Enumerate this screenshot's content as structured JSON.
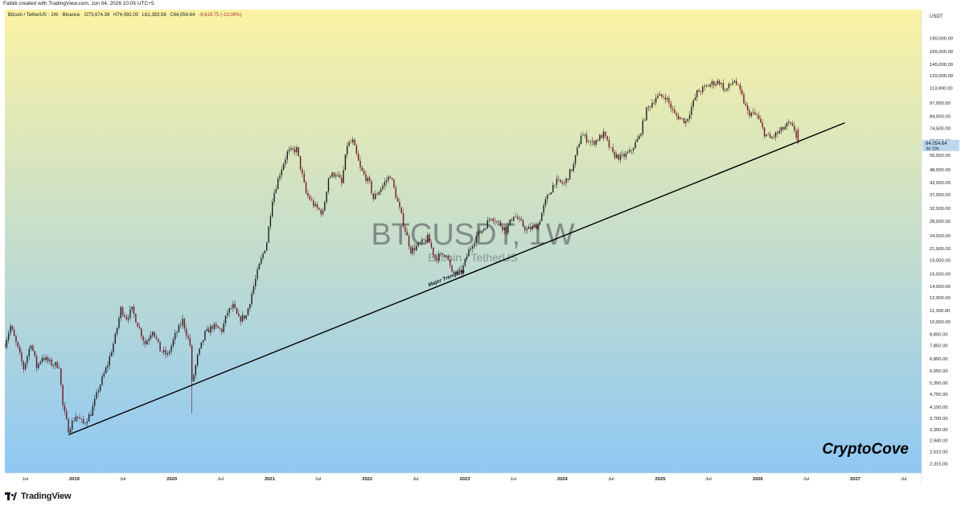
{
  "header": {
    "attribution": "Fatbik created with TradingView.com, Jun 04, 2026 10:05 UTC+5"
  },
  "legend": {
    "symbol": "Bitcoin / TetherUS · 1W · Binance",
    "open": "O73,674.39",
    "high": "H74,092.00",
    "low": "L61,383.56",
    "close": "C64,054.64",
    "change": "-9,619.75 (-13.06%)"
  },
  "watermark": {
    "ticker": "BTCUSDT, 1W",
    "name": "Bitcoin / TetherUS"
  },
  "branding": {
    "author": "CryptoCove",
    "platform": "TradingView"
  },
  "colors": {
    "bg_top": "#fbf3a4",
    "bg_bottom": "#8fc8f4",
    "candle_up": "#1d1d1d",
    "candle_down": "#6e1523",
    "trendline": "#000000",
    "price_tag": "#bcd8ef"
  },
  "chart_data": {
    "type": "candlestick",
    "timeframe": "1W",
    "y_scale": "log",
    "y_unit": "USDT",
    "x_range": [
      "2018-04-16",
      "2027-09-06"
    ],
    "y_range": [
      2100,
      255000
    ],
    "y_ticks": [
      "2,315.00",
      "2,615.00",
      "2,940.00",
      "3,300.00",
      "3,700.00",
      "4,150.00",
      "4,750.00",
      "5,350.00",
      "6,050.00",
      "6,850.00",
      "7,850.00",
      "8,850.00",
      "10,050.00",
      "11,300.00",
      "12,900.00",
      "14,500.00",
      "16,500.00",
      "19,000.00",
      "21,500.00",
      "24,500.00",
      "28,500.00",
      "32,500.00",
      "37,500.00",
      "42,500.00",
      "48,500.00",
      "56,500.00",
      "65,500.00",
      "74,500.00",
      "84,500.00",
      "97,000.00",
      "113,000.00",
      "129,000.00",
      "145,000.00",
      "165,000.00",
      "190,000.00"
    ],
    "x_ticks": [
      {
        "label": "Jul",
        "date": "2018-07-01"
      },
      {
        "label": "2019",
        "date": "2019-01-01"
      },
      {
        "label": "Jul",
        "date": "2019-07-01"
      },
      {
        "label": "2020",
        "date": "2020-01-01"
      },
      {
        "label": "Jul",
        "date": "2020-07-01"
      },
      {
        "label": "2021",
        "date": "2021-01-01"
      },
      {
        "label": "Jul",
        "date": "2021-07-01"
      },
      {
        "label": "2022",
        "date": "2022-01-01"
      },
      {
        "label": "Jul",
        "date": "2022-07-01"
      },
      {
        "label": "2023",
        "date": "2023-01-01"
      },
      {
        "label": "Jul",
        "date": "2023-07-01"
      },
      {
        "label": "2024",
        "date": "2024-01-01"
      },
      {
        "label": "Jul",
        "date": "2024-07-01"
      },
      {
        "label": "2025",
        "date": "2025-01-01"
      },
      {
        "label": "Jul",
        "date": "2025-07-01"
      },
      {
        "label": "2026",
        "date": "2026-01-01"
      },
      {
        "label": "Jul",
        "date": "2026-07-01"
      },
      {
        "label": "2027",
        "date": "2027-01-01"
      },
      {
        "label": "Jul",
        "date": "2027-07-01"
      }
    ],
    "price_path": [
      [
        "2018-04-16",
        8000
      ],
      [
        "2018-05-07",
        9600
      ],
      [
        "2018-06-04",
        7600
      ],
      [
        "2018-06-25",
        6200
      ],
      [
        "2018-07-23",
        8100
      ],
      [
        "2018-08-13",
        6300
      ],
      [
        "2018-09-03",
        7000
      ],
      [
        "2018-10-08",
        6500
      ],
      [
        "2018-11-05",
        6400
      ],
      [
        "2018-11-19",
        4200
      ],
      [
        "2018-12-10",
        3300
      ],
      [
        "2019-01-07",
        3800
      ],
      [
        "2019-02-04",
        3500
      ],
      [
        "2019-03-04",
        3900
      ],
      [
        "2019-04-01",
        5000
      ],
      [
        "2019-05-06",
        6500
      ],
      [
        "2019-06-03",
        8600
      ],
      [
        "2019-06-24",
        11500
      ],
      [
        "2019-07-15",
        10500
      ],
      [
        "2019-08-05",
        11400
      ],
      [
        "2019-08-26",
        9800
      ],
      [
        "2019-09-23",
        8000
      ],
      [
        "2019-10-21",
        9300
      ],
      [
        "2019-11-18",
        7500
      ],
      [
        "2019-12-16",
        7100
      ],
      [
        "2020-01-13",
        8700
      ],
      [
        "2020-02-10",
        10200
      ],
      [
        "2020-03-09",
        7900
      ],
      [
        "2020-03-16",
        5300
      ],
      [
        "2020-04-06",
        7000
      ],
      [
        "2020-05-04",
        8900
      ],
      [
        "2020-06-01",
        9600
      ],
      [
        "2020-07-06",
        9200
      ],
      [
        "2020-07-27",
        11100
      ],
      [
        "2020-08-17",
        11800
      ],
      [
        "2020-09-07",
        10300
      ],
      [
        "2020-10-05",
        10700
      ],
      [
        "2020-10-26",
        13500
      ],
      [
        "2020-11-23",
        18000
      ],
      [
        "2020-12-21",
        23000
      ],
      [
        "2021-01-11",
        36000
      ],
      [
        "2021-02-08",
        47000
      ],
      [
        "2021-03-08",
        58000
      ],
      [
        "2021-04-12",
        60000
      ],
      [
        "2021-05-17",
        38000
      ],
      [
        "2021-06-21",
        33000
      ],
      [
        "2021-07-19",
        31000
      ],
      [
        "2021-08-09",
        45000
      ],
      [
        "2021-09-06",
        47000
      ],
      [
        "2021-09-27",
        42000
      ],
      [
        "2021-10-18",
        63000
      ],
      [
        "2021-11-08",
        65000
      ],
      [
        "2021-12-06",
        49000
      ],
      [
        "2022-01-10",
        42000
      ],
      [
        "2022-01-24",
        36000
      ],
      [
        "2022-03-28",
        46000
      ],
      [
        "2022-05-09",
        30000
      ],
      [
        "2022-06-13",
        21000
      ],
      [
        "2022-07-18",
        22500
      ],
      [
        "2022-08-15",
        24000
      ],
      [
        "2022-09-12",
        19500
      ],
      [
        "2022-10-24",
        20500
      ],
      [
        "2022-11-14",
        16500
      ],
      [
        "2022-12-19",
        16800
      ],
      [
        "2023-01-16",
        21000
      ],
      [
        "2023-02-13",
        24500
      ],
      [
        "2023-03-13",
        26500
      ],
      [
        "2023-04-10",
        30000
      ],
      [
        "2023-06-05",
        26000
      ],
      [
        "2023-07-03",
        30500
      ],
      [
        "2023-08-21",
        26000
      ],
      [
        "2023-10-02",
        27500
      ],
      [
        "2023-10-30",
        35000
      ],
      [
        "2023-12-04",
        43000
      ],
      [
        "2024-01-08",
        42000
      ],
      [
        "2024-02-12",
        51000
      ],
      [
        "2024-03-11",
        70000
      ],
      [
        "2024-04-22",
        64000
      ],
      [
        "2024-06-03",
        70000
      ],
      [
        "2024-07-08",
        57000
      ],
      [
        "2024-08-05",
        55000
      ],
      [
        "2024-09-09",
        58000
      ],
      [
        "2024-10-14",
        68000
      ],
      [
        "2024-11-11",
        90000
      ],
      [
        "2024-12-16",
        103000
      ],
      [
        "2025-01-20",
        104000
      ],
      [
        "2025-02-24",
        86000
      ],
      [
        "2025-04-07",
        80000
      ],
      [
        "2025-05-19",
        108000
      ],
      [
        "2025-07-14",
        119000
      ],
      [
        "2025-08-11",
        121000
      ],
      [
        "2025-09-01",
        110000
      ],
      [
        "2025-10-06",
        123000
      ],
      [
        "2025-11-03",
        104000
      ],
      [
        "2025-11-24",
        88000
      ],
      [
        "2025-12-29",
        85000
      ],
      [
        "2026-01-26",
        71000
      ],
      [
        "2026-02-16",
        67000
      ],
      [
        "2026-03-23",
        72000
      ],
      [
        "2026-04-27",
        78000
      ],
      [
        "2026-05-18",
        73500
      ],
      [
        "2026-06-01",
        64054.64
      ]
    ],
    "trendline": {
      "label": "Major Trendline",
      "from": [
        "2018-12-10",
        3120
      ],
      "to": [
        "2026-11-23",
        79000
      ]
    },
    "last_price": {
      "value": "64,054.64",
      "countdown": "3d 19h"
    }
  }
}
